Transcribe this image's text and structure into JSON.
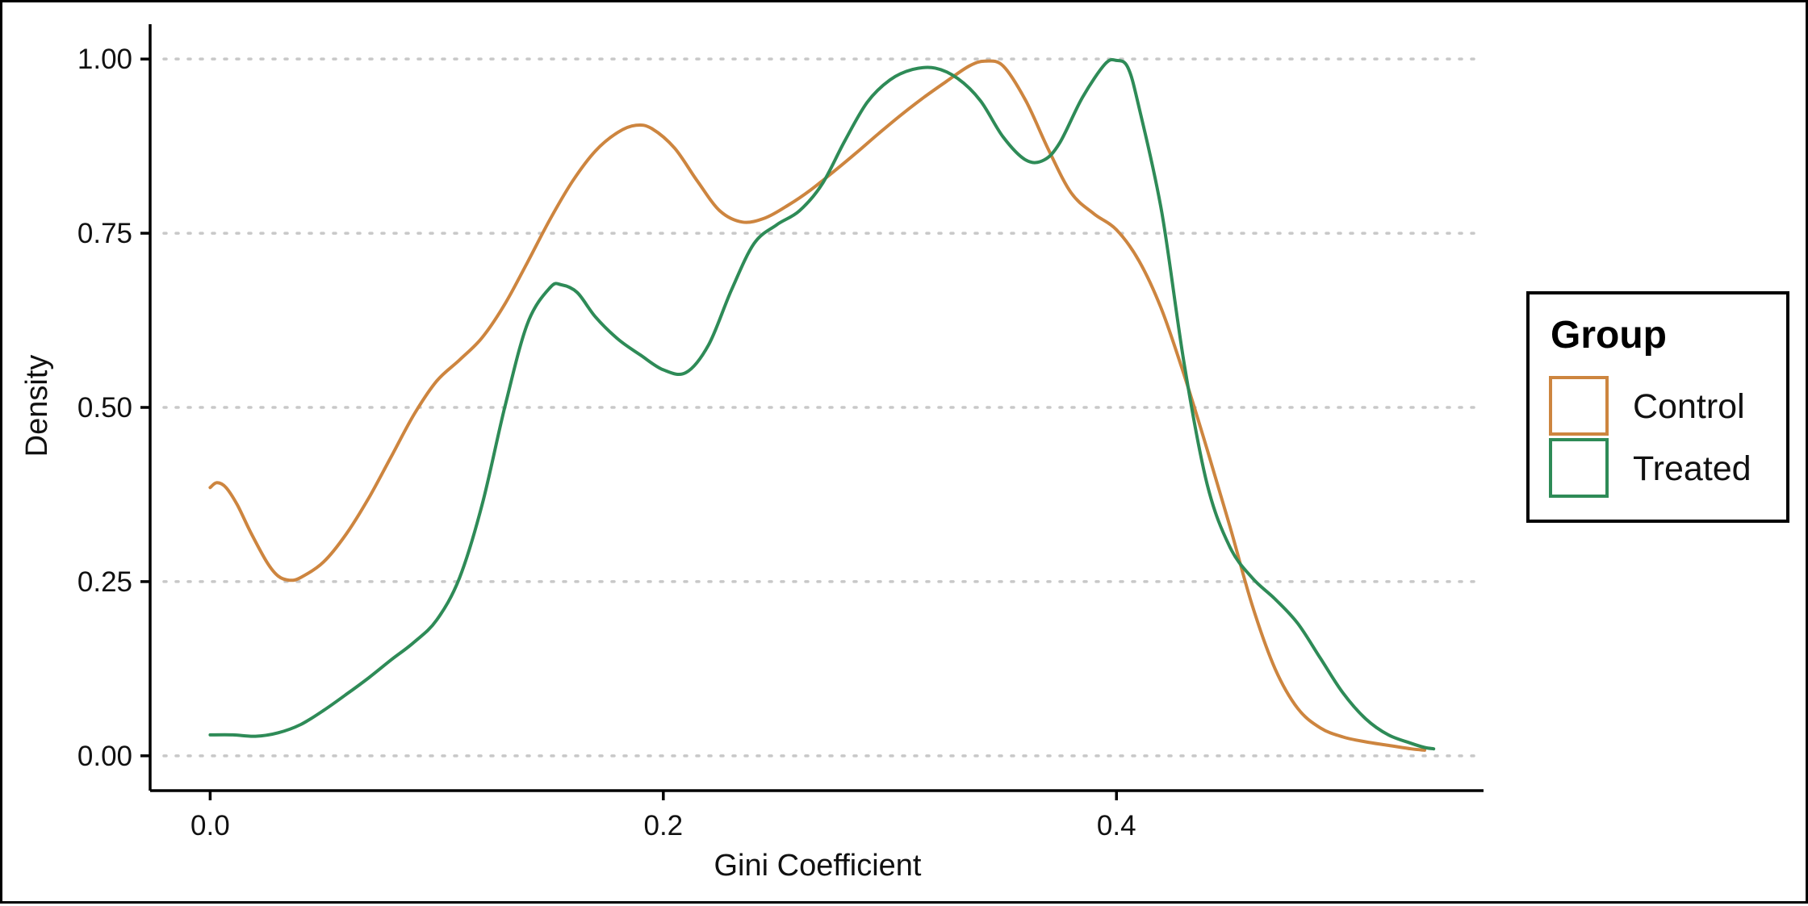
{
  "chart_data": {
    "type": "line",
    "title": "",
    "xlabel": "Gini Coefficient",
    "ylabel": "Density",
    "xlim": [
      -0.0265,
      0.562
    ],
    "ylim": [
      -0.05,
      1.05
    ],
    "x_ticks": [
      0.0,
      0.2,
      0.4
    ],
    "x_tick_labels": [
      "0.0",
      "0.2",
      "0.4"
    ],
    "y_ticks": [
      0.0,
      0.25,
      0.5,
      0.75,
      1.0
    ],
    "y_tick_labels": [
      "0.00",
      "0.25",
      "0.50",
      "0.75",
      "1.00"
    ],
    "grid": "horizontal dotted",
    "legend": {
      "title": "Group",
      "position": "right"
    },
    "series": [
      {
        "name": "Control",
        "color": "#CD853F",
        "points": [
          [
            0.0,
            0.385
          ],
          [
            0.003,
            0.392
          ],
          [
            0.007,
            0.385
          ],
          [
            0.012,
            0.36
          ],
          [
            0.018,
            0.32
          ],
          [
            0.025,
            0.278
          ],
          [
            0.03,
            0.258
          ],
          [
            0.035,
            0.252
          ],
          [
            0.04,
            0.256
          ],
          [
            0.05,
            0.278
          ],
          [
            0.06,
            0.318
          ],
          [
            0.07,
            0.37
          ],
          [
            0.08,
            0.43
          ],
          [
            0.09,
            0.49
          ],
          [
            0.1,
            0.538
          ],
          [
            0.11,
            0.568
          ],
          [
            0.12,
            0.6
          ],
          [
            0.13,
            0.648
          ],
          [
            0.14,
            0.708
          ],
          [
            0.15,
            0.77
          ],
          [
            0.16,
            0.825
          ],
          [
            0.17,
            0.868
          ],
          [
            0.18,
            0.895
          ],
          [
            0.188,
            0.905
          ],
          [
            0.195,
            0.9
          ],
          [
            0.205,
            0.872
          ],
          [
            0.215,
            0.825
          ],
          [
            0.225,
            0.782
          ],
          [
            0.235,
            0.766
          ],
          [
            0.245,
            0.772
          ],
          [
            0.255,
            0.79
          ],
          [
            0.265,
            0.812
          ],
          [
            0.275,
            0.838
          ],
          [
            0.285,
            0.865
          ],
          [
            0.295,
            0.893
          ],
          [
            0.305,
            0.92
          ],
          [
            0.315,
            0.945
          ],
          [
            0.325,
            0.968
          ],
          [
            0.335,
            0.99
          ],
          [
            0.342,
            0.997
          ],
          [
            0.35,
            0.99
          ],
          [
            0.36,
            0.94
          ],
          [
            0.37,
            0.87
          ],
          [
            0.38,
            0.808
          ],
          [
            0.39,
            0.778
          ],
          [
            0.4,
            0.755
          ],
          [
            0.41,
            0.71
          ],
          [
            0.42,
            0.64
          ],
          [
            0.43,
            0.545
          ],
          [
            0.44,
            0.44
          ],
          [
            0.45,
            0.33
          ],
          [
            0.46,
            0.215
          ],
          [
            0.47,
            0.125
          ],
          [
            0.48,
            0.068
          ],
          [
            0.49,
            0.04
          ],
          [
            0.5,
            0.027
          ],
          [
            0.51,
            0.02
          ],
          [
            0.52,
            0.015
          ],
          [
            0.53,
            0.01
          ],
          [
            0.536,
            0.008
          ]
        ]
      },
      {
        "name": "Treated",
        "color": "#2E8B57",
        "points": [
          [
            0.0,
            0.03
          ],
          [
            0.01,
            0.03
          ],
          [
            0.02,
            0.028
          ],
          [
            0.03,
            0.033
          ],
          [
            0.04,
            0.045
          ],
          [
            0.05,
            0.065
          ],
          [
            0.06,
            0.088
          ],
          [
            0.07,
            0.112
          ],
          [
            0.08,
            0.138
          ],
          [
            0.09,
            0.163
          ],
          [
            0.1,
            0.195
          ],
          [
            0.11,
            0.255
          ],
          [
            0.12,
            0.36
          ],
          [
            0.13,
            0.5
          ],
          [
            0.14,
            0.62
          ],
          [
            0.15,
            0.672
          ],
          [
            0.155,
            0.676
          ],
          [
            0.162,
            0.665
          ],
          [
            0.17,
            0.63
          ],
          [
            0.18,
            0.598
          ],
          [
            0.19,
            0.575
          ],
          [
            0.2,
            0.554
          ],
          [
            0.21,
            0.55
          ],
          [
            0.22,
            0.59
          ],
          [
            0.23,
            0.668
          ],
          [
            0.24,
            0.735
          ],
          [
            0.25,
            0.762
          ],
          [
            0.26,
            0.782
          ],
          [
            0.27,
            0.82
          ],
          [
            0.28,
            0.882
          ],
          [
            0.29,
            0.938
          ],
          [
            0.3,
            0.97
          ],
          [
            0.31,
            0.985
          ],
          [
            0.32,
            0.987
          ],
          [
            0.33,
            0.972
          ],
          [
            0.34,
            0.94
          ],
          [
            0.35,
            0.888
          ],
          [
            0.36,
            0.855
          ],
          [
            0.368,
            0.855
          ],
          [
            0.375,
            0.88
          ],
          [
            0.385,
            0.945
          ],
          [
            0.395,
            0.993
          ],
          [
            0.4,
            0.998
          ],
          [
            0.405,
            0.988
          ],
          [
            0.41,
            0.93
          ],
          [
            0.42,
            0.78
          ],
          [
            0.43,
            0.56
          ],
          [
            0.44,
            0.39
          ],
          [
            0.45,
            0.3
          ],
          [
            0.46,
            0.255
          ],
          [
            0.47,
            0.225
          ],
          [
            0.48,
            0.19
          ],
          [
            0.49,
            0.14
          ],
          [
            0.5,
            0.09
          ],
          [
            0.51,
            0.053
          ],
          [
            0.52,
            0.03
          ],
          [
            0.53,
            0.018
          ],
          [
            0.54,
            0.01
          ],
          [
            0.536,
            0.012
          ]
        ]
      }
    ]
  }
}
